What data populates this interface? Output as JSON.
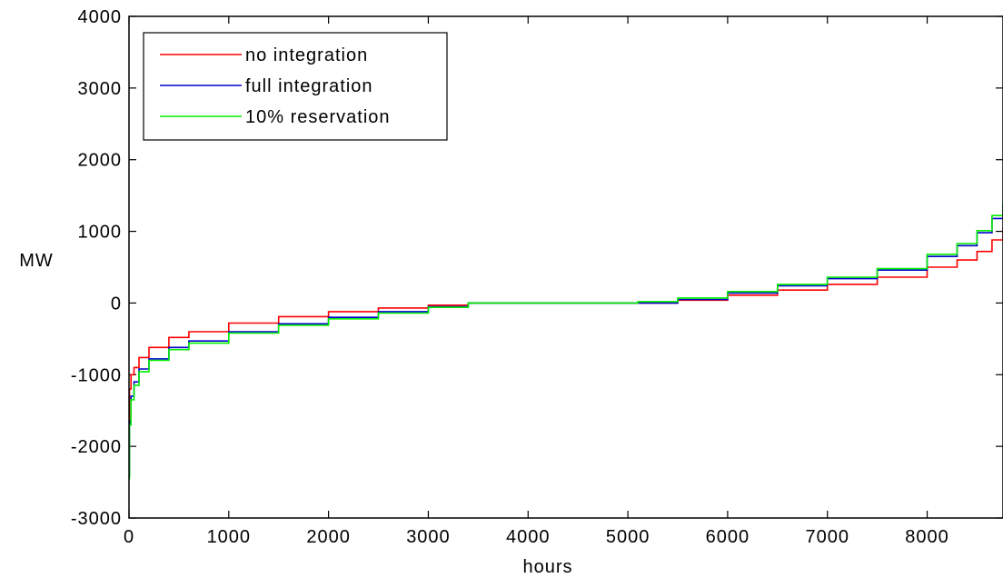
{
  "chart_data": {
    "type": "line",
    "title": "",
    "xlabel": "hours",
    "ylabel": "MW",
    "xlim": [
      0,
      8760
    ],
    "ylim": [
      -3000,
      4000
    ],
    "x_ticks": [
      0,
      1000,
      2000,
      3000,
      4000,
      5000,
      6000,
      7000,
      8000
    ],
    "x_tick_labels": [
      "0",
      "1000",
      "2000",
      "3000",
      "4000",
      "5000",
      "6000",
      "7000",
      "8000"
    ],
    "y_ticks": [
      -3000,
      -2000,
      -1000,
      0,
      1000,
      2000,
      3000,
      4000
    ],
    "y_tick_labels": [
      "-3000",
      "-2000",
      "-1000",
      "0",
      "1000",
      "2000",
      "3000",
      "4000"
    ],
    "grid": false,
    "legend_position": "top-left",
    "series": [
      {
        "name": "no integration",
        "color": "#ff0000",
        "x": [
          0,
          5,
          20,
          50,
          100,
          200,
          400,
          600,
          1000,
          1500,
          2000,
          2500,
          3000,
          3400,
          5100,
          5500,
          6000,
          6500,
          7000,
          7500,
          8000,
          8300,
          8500,
          8650,
          8760
        ],
        "y": [
          -1700,
          -1200,
          -1000,
          -900,
          -760,
          -620,
          -480,
          -400,
          -280,
          -190,
          -120,
          -70,
          -30,
          0,
          0,
          40,
          110,
          180,
          260,
          360,
          500,
          600,
          720,
          880,
          1050
        ]
      },
      {
        "name": "full integration",
        "color": "#0000cc",
        "x": [
          0,
          5,
          20,
          50,
          100,
          200,
          400,
          600,
          1000,
          1500,
          2000,
          2500,
          3000,
          3400,
          5100,
          5500,
          6000,
          6500,
          7000,
          7500,
          8000,
          8300,
          8500,
          8650,
          8760
        ],
        "y": [
          -2400,
          -1650,
          -1300,
          -1100,
          -920,
          -780,
          -620,
          -530,
          -400,
          -290,
          -200,
          -120,
          -50,
          0,
          0,
          50,
          140,
          240,
          340,
          460,
          650,
          800,
          980,
          1180,
          1380
        ]
      },
      {
        "name": "10% reservation",
        "color": "#00ee00",
        "x": [
          0,
          5,
          20,
          50,
          100,
          200,
          400,
          600,
          1000,
          1500,
          2000,
          2500,
          3000,
          3400,
          5100,
          5500,
          6000,
          6500,
          7000,
          7500,
          8000,
          8300,
          8500,
          8650,
          8760
        ],
        "y": [
          -2450,
          -1700,
          -1350,
          -1150,
          -960,
          -800,
          -650,
          -560,
          -420,
          -310,
          -220,
          -140,
          -60,
          0,
          20,
          70,
          160,
          260,
          360,
          480,
          680,
          830,
          1010,
          1220,
          1420
        ]
      }
    ]
  }
}
